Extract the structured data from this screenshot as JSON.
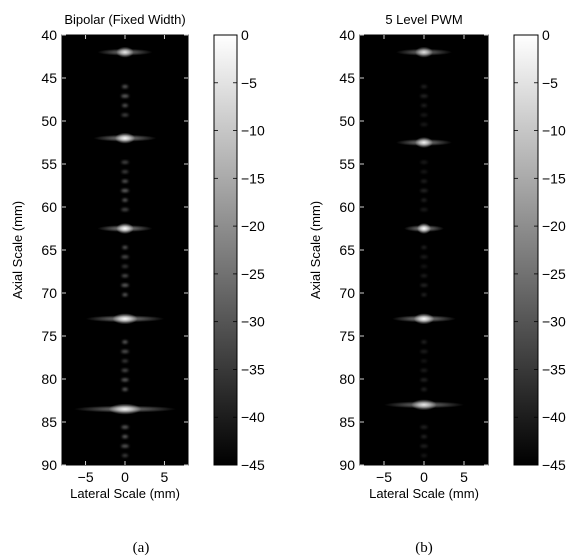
{
  "chart_data": [
    {
      "type": "heatmap",
      "title": "Bipolar (Fixed Width)",
      "xlabel": "Lateral Scale (mm)",
      "ylabel": "Axial Scale (mm)",
      "xlim": [
        -8,
        8
      ],
      "ylim": [
        40,
        90
      ],
      "y_reversed": true,
      "x_ticks": [
        -5,
        0,
        5
      ],
      "y_ticks": [
        40,
        45,
        50,
        55,
        60,
        65,
        70,
        75,
        80,
        85,
        90
      ],
      "colormap": "gray",
      "colorbar": {
        "range": [
          -45,
          0
        ],
        "ticks": [
          0,
          -5,
          -10,
          -15,
          -20,
          -25,
          -30,
          -35,
          -40,
          -45
        ]
      },
      "caption": "(a)",
      "point_targets": [
        {
          "depth": 42,
          "lateral_width": 7,
          "peak_db": -8
        },
        {
          "depth": 52,
          "lateral_width": 8,
          "peak_db": -3
        },
        {
          "depth": 62.5,
          "lateral_width": 7,
          "peak_db": -1
        },
        {
          "depth": 73,
          "lateral_width": 10,
          "peak_db": -3
        },
        {
          "depth": 83.5,
          "lateral_width": 13,
          "peak_db": -5
        }
      ],
      "axial_streak_db": -27
    },
    {
      "type": "heatmap",
      "title": "5 Level PWM",
      "xlabel": "Lateral Scale (mm)",
      "ylabel": "Axial Scale (mm)",
      "xlim": [
        -8,
        8
      ],
      "ylim": [
        40,
        90
      ],
      "y_reversed": true,
      "x_ticks": [
        -5,
        0,
        5
      ],
      "y_ticks": [
        40,
        45,
        50,
        55,
        60,
        65,
        70,
        75,
        80,
        85,
        90
      ],
      "colormap": "gray",
      "colorbar": {
        "range": [
          -45,
          0
        ],
        "ticks": [
          0,
          -5,
          -10,
          -15,
          -20,
          -25,
          -30,
          -35,
          -40,
          -45
        ]
      },
      "caption": "(b)",
      "point_targets": [
        {
          "depth": 42,
          "lateral_width": 7,
          "peak_db": -10
        },
        {
          "depth": 52.5,
          "lateral_width": 7,
          "peak_db": -5
        },
        {
          "depth": 62.5,
          "lateral_width": 5,
          "peak_db": -1
        },
        {
          "depth": 73,
          "lateral_width": 8,
          "peak_db": -2
        },
        {
          "depth": 83,
          "lateral_width": 10,
          "peak_db": -8
        }
      ],
      "axial_streak_db": -38
    }
  ]
}
